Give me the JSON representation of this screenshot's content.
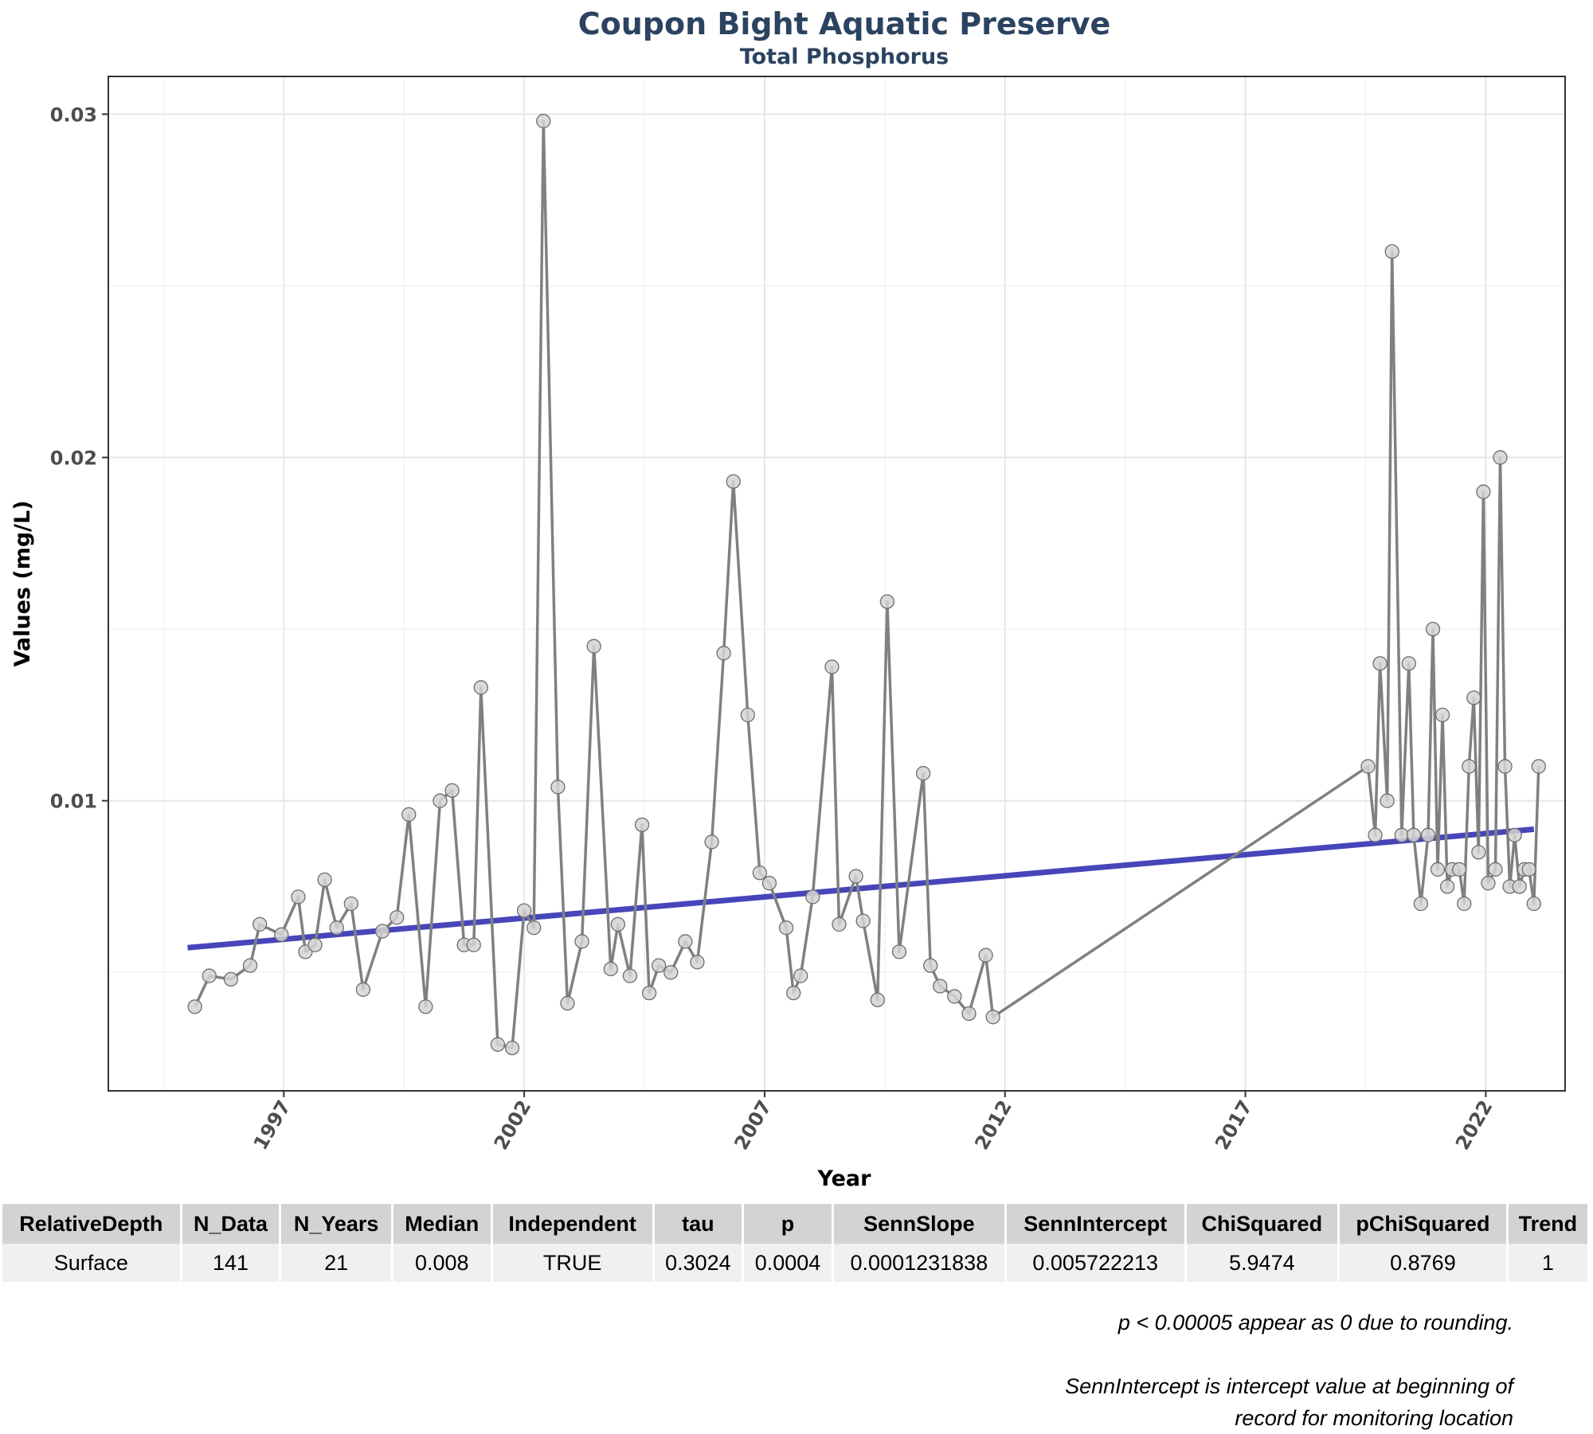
{
  "chart_data": {
    "type": "line",
    "title": "Coupon Bight Aquatic Preserve",
    "subtitle": "Total Phosphorus",
    "xlabel": "Year",
    "ylabel": "Values (mg/L)",
    "xlim": [
      1993.35,
      2023.65
    ],
    "ylim": [
      0.00155,
      0.0311
    ],
    "x_ticks": [
      1997,
      2002,
      2007,
      2012,
      2017,
      2022
    ],
    "y_ticks": [
      0.01,
      0.02,
      0.03
    ],
    "y_tick_labels": [
      "0.01",
      "0.02",
      "0.03"
    ],
    "grid": true,
    "legend": "none",
    "series": [
      {
        "values": [
          [
            1995.15,
            0.004
          ],
          [
            1995.45,
            0.0049
          ],
          [
            1995.9,
            0.0048
          ],
          [
            1996.3,
            0.0052
          ],
          [
            1996.5,
            0.0064
          ],
          [
            1996.95,
            0.0061
          ],
          [
            1997.3,
            0.0072
          ],
          [
            1997.45,
            0.0056
          ],
          [
            1997.65,
            0.0058
          ],
          [
            1997.85,
            0.0077
          ],
          [
            1998.1,
            0.0063
          ],
          [
            1998.4,
            0.007
          ],
          [
            1998.65,
            0.0045
          ],
          [
            1999.05,
            0.0062
          ],
          [
            1999.35,
            0.0066
          ],
          [
            1999.6,
            0.0096
          ],
          [
            1999.95,
            0.004
          ],
          [
            2000.25,
            0.01
          ],
          [
            2000.5,
            0.0103
          ],
          [
            2000.75,
            0.0058
          ],
          [
            2000.95,
            0.0058
          ],
          [
            2001.1,
            0.0133
          ],
          [
            2001.45,
            0.0029
          ],
          [
            2001.75,
            0.0028
          ],
          [
            2002.0,
            0.0068
          ],
          [
            2002.2,
            0.0063
          ],
          [
            2002.4,
            0.0298
          ],
          [
            2002.7,
            0.0104
          ],
          [
            2002.9,
            0.0041
          ],
          [
            2003.2,
            0.0059
          ],
          [
            2003.45,
            0.0145
          ],
          [
            2003.8,
            0.0051
          ],
          [
            2003.95,
            0.0064
          ],
          [
            2004.2,
            0.0049
          ],
          [
            2004.45,
            0.0093
          ],
          [
            2004.6,
            0.0044
          ],
          [
            2004.8,
            0.0052
          ],
          [
            2005.05,
            0.005
          ],
          [
            2005.35,
            0.0059
          ],
          [
            2005.6,
            0.0053
          ],
          [
            2005.9,
            0.0088
          ],
          [
            2006.15,
            0.0143
          ],
          [
            2006.35,
            0.0193
          ],
          [
            2006.65,
            0.0125
          ],
          [
            2006.9,
            0.0079
          ],
          [
            2007.1,
            0.0076
          ],
          [
            2007.45,
            0.0063
          ],
          [
            2007.6,
            0.0044
          ],
          [
            2007.75,
            0.0049
          ],
          [
            2008.0,
            0.0072
          ],
          [
            2008.4,
            0.0139
          ],
          [
            2008.55,
            0.0064
          ],
          [
            2008.9,
            0.0078
          ],
          [
            2009.05,
            0.0065
          ],
          [
            2009.35,
            0.0042
          ],
          [
            2009.55,
            0.0158
          ],
          [
            2009.8,
            0.0056
          ],
          [
            2010.3,
            0.0108
          ],
          [
            2010.45,
            0.0052
          ],
          [
            2010.65,
            0.0046
          ],
          [
            2010.95,
            0.0043
          ],
          [
            2011.25,
            0.0038
          ],
          [
            2011.6,
            0.0055
          ],
          [
            2011.75,
            0.0037
          ],
          [
            2019.55,
            0.011
          ],
          [
            2019.7,
            0.009
          ],
          [
            2019.8,
            0.014
          ],
          [
            2019.95,
            0.01
          ],
          [
            2020.05,
            0.026
          ],
          [
            2020.25,
            0.009
          ],
          [
            2020.4,
            0.014
          ],
          [
            2020.5,
            0.009
          ],
          [
            2020.65,
            0.007
          ],
          [
            2020.8,
            0.009
          ],
          [
            2020.9,
            0.015
          ],
          [
            2021.0,
            0.008
          ],
          [
            2021.1,
            0.0125
          ],
          [
            2021.2,
            0.0075
          ],
          [
            2021.3,
            0.008
          ],
          [
            2021.45,
            0.008
          ],
          [
            2021.55,
            0.007
          ],
          [
            2021.65,
            0.011
          ],
          [
            2021.75,
            0.013
          ],
          [
            2021.85,
            0.0085
          ],
          [
            2021.95,
            0.019
          ],
          [
            2022.05,
            0.0076
          ],
          [
            2022.2,
            0.008
          ],
          [
            2022.3,
            0.02
          ],
          [
            2022.4,
            0.011
          ],
          [
            2022.5,
            0.0075
          ],
          [
            2022.6,
            0.009
          ],
          [
            2022.7,
            0.0075
          ],
          [
            2022.8,
            0.008
          ],
          [
            2022.9,
            0.008
          ],
          [
            2023.0,
            0.007
          ],
          [
            2023.1,
            0.011
          ]
        ]
      }
    ],
    "trend_line": {
      "x": [
        1995.0,
        2023.0
      ],
      "y": [
        0.00572,
        0.00917
      ]
    },
    "colors": {
      "series": "#808080",
      "points_fill": "#d3d3d3",
      "trend": "#3636b4",
      "title": "#2b4360"
    }
  },
  "table": {
    "columns": [
      "RelativeDepth",
      "N_Data",
      "N_Years",
      "Median",
      "Independent",
      "tau",
      "p",
      "SennSlope",
      "SennIntercept",
      "ChiSquared",
      "pChiSquared",
      "Trend"
    ],
    "rows": [
      [
        "Surface",
        "141",
        "21",
        "0.008",
        "TRUE",
        "0.3024",
        "0.0004",
        "0.0001231838",
        "0.005722213",
        "5.9474",
        "0.8769",
        "1"
      ]
    ]
  },
  "notes": {
    "rounding": "p < 0.00005 appear as 0 due to rounding.",
    "intercept_line1": "SennIntercept is intercept value at beginning of",
    "intercept_line2": "record for monitoring location"
  }
}
